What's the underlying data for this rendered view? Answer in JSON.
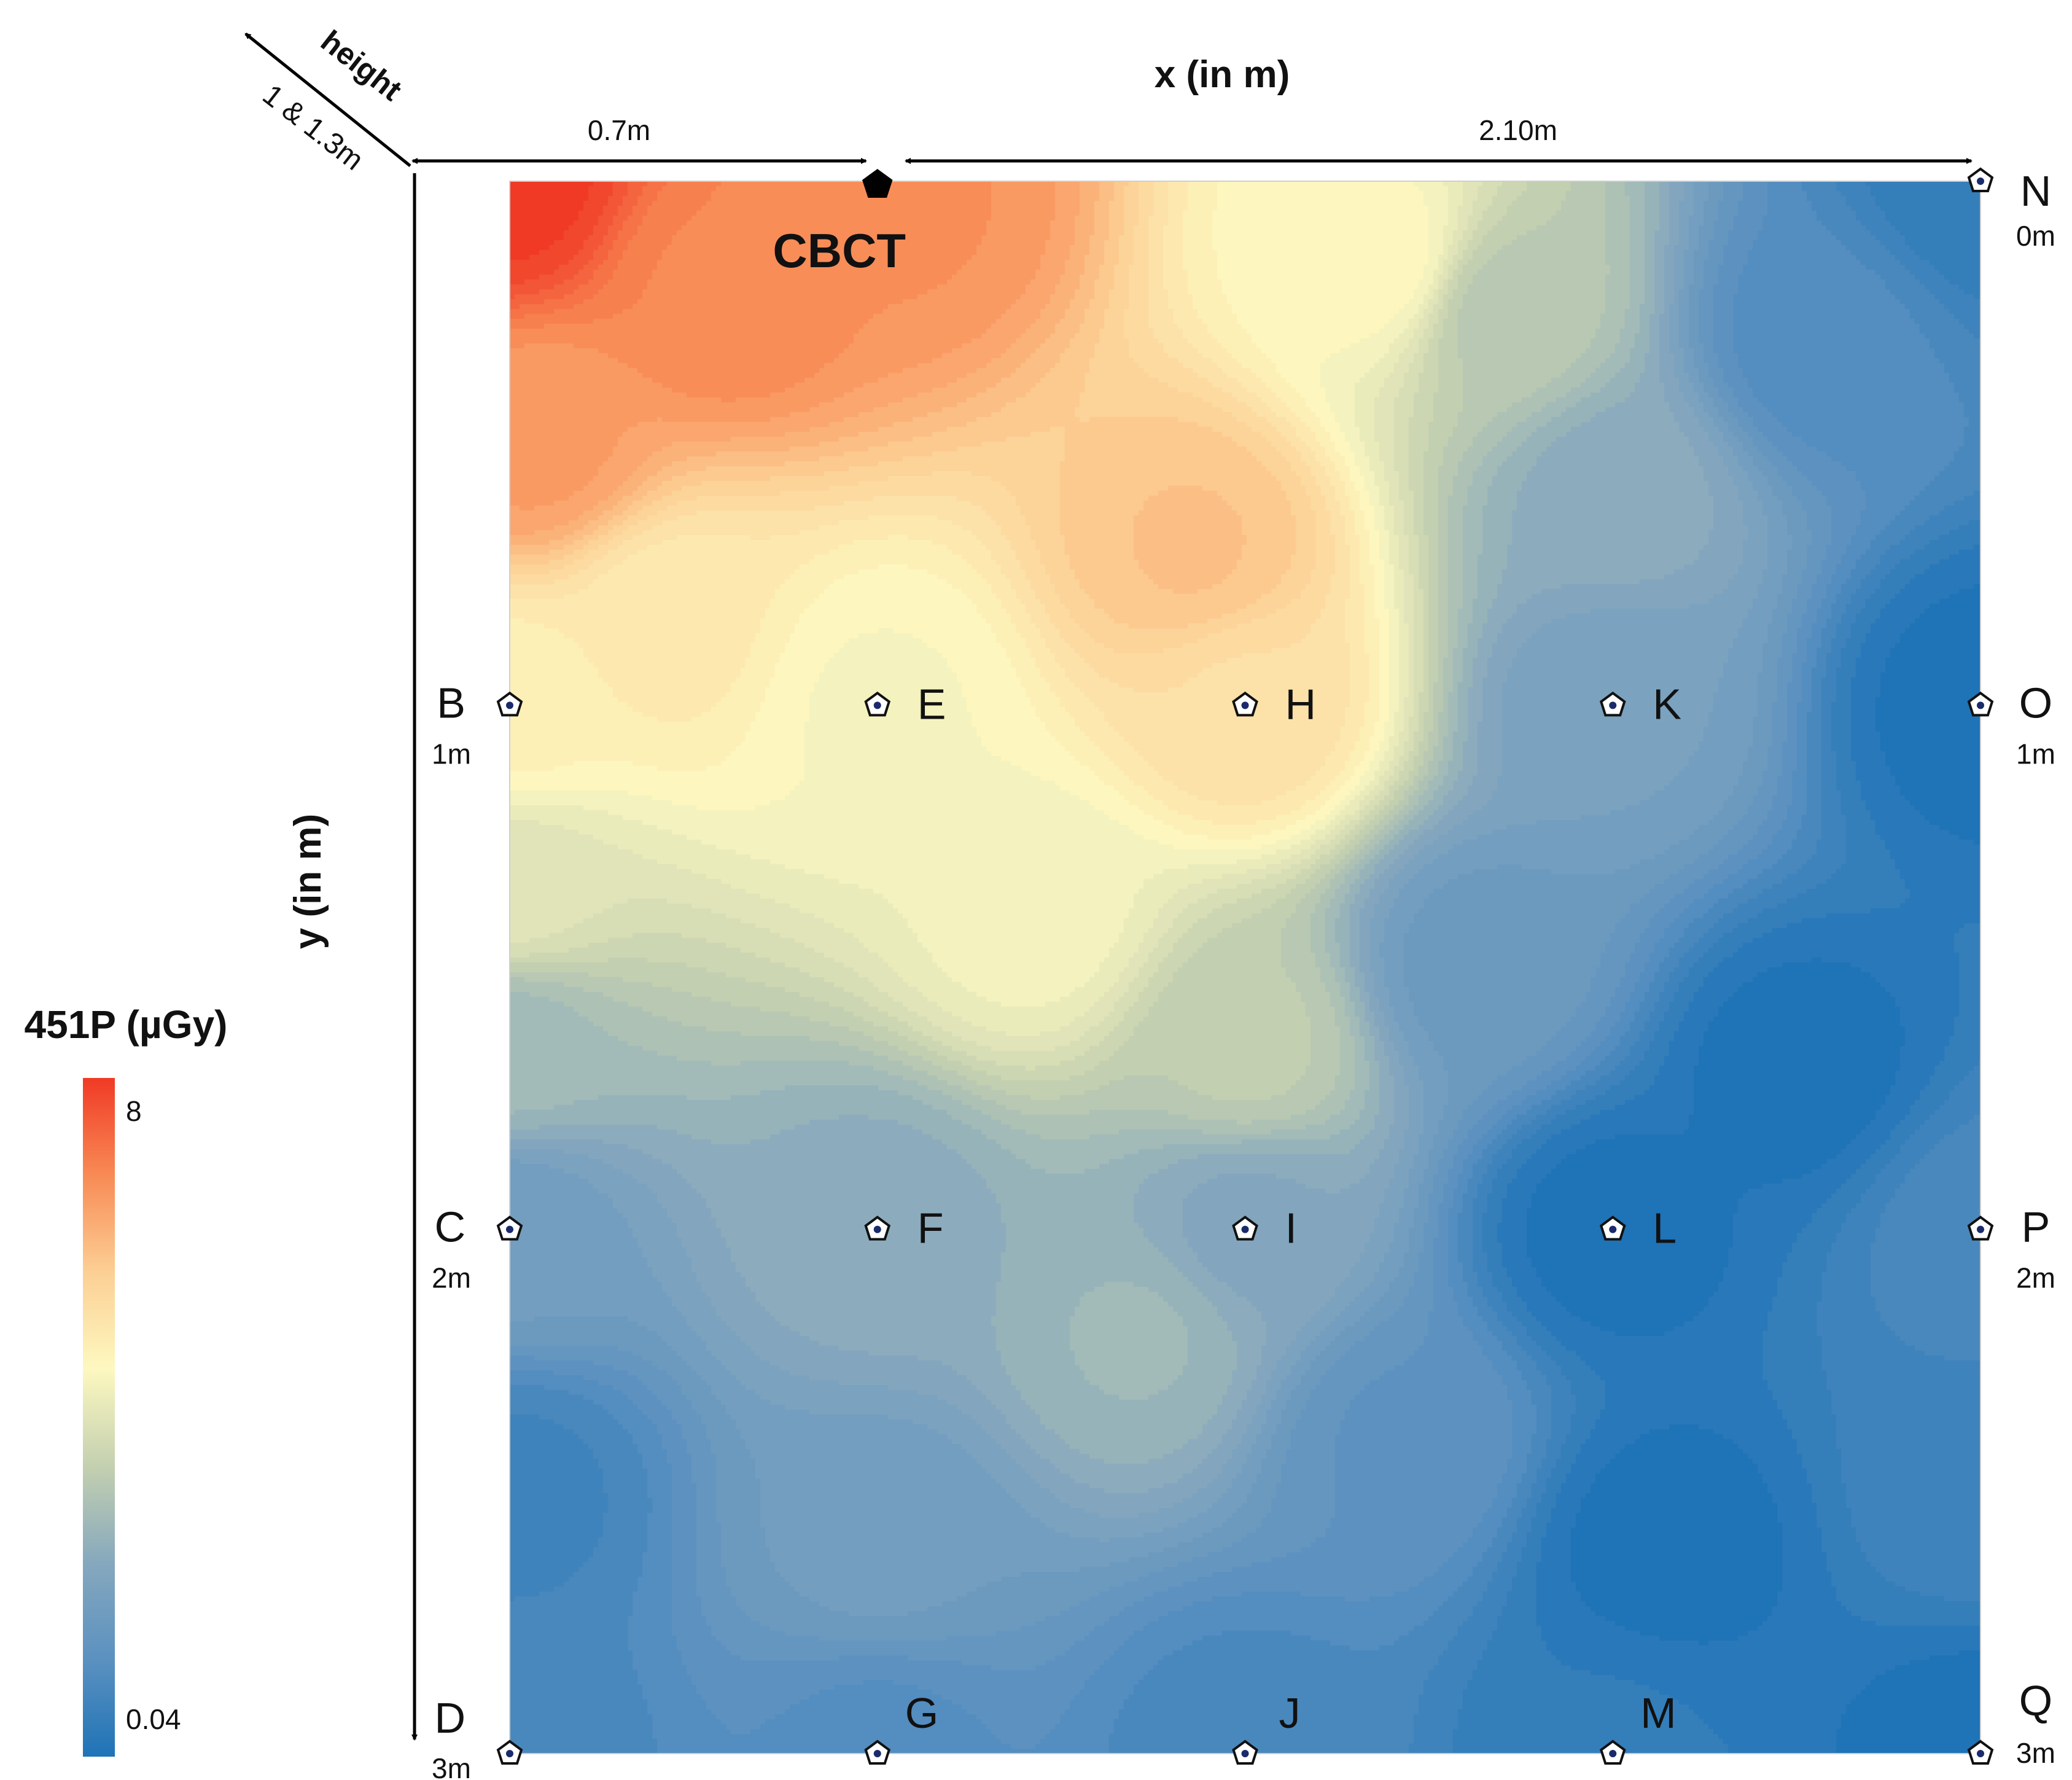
{
  "chart_data": {
    "type": "heatmap",
    "subtype": "dose contour map (floor plan)",
    "x_axis_title": "x (in m)",
    "y_axis_title": "y (in m)",
    "height_label": "height",
    "height_value": "1 & 1.3m",
    "dimension_labels": {
      "source_offset": "0.7m",
      "remaining_width": "2.10m"
    },
    "xlim": [
      0,
      2.8
    ],
    "ylim": [
      0,
      3
    ],
    "source": {
      "name": "CBCT",
      "x": 0.7,
      "y": 0
    },
    "colorbar": {
      "title": "451P (µGy)",
      "max_label": "8",
      "min_label": "0.04",
      "max_value": 8,
      "min_value": 0.04,
      "colors": [
        "#f03a25",
        "#f88a55",
        "#fccf94",
        "#fdf8c0",
        "#c4d0b0",
        "#86a8be",
        "#5b91c0",
        "#1f73b7"
      ]
    },
    "points": [
      {
        "name": "N",
        "x": 2.8,
        "y": 0,
        "distance_label": "0m"
      },
      {
        "name": "B",
        "x": 0,
        "y": 1,
        "distance_label": "1m"
      },
      {
        "name": "E",
        "x": 0.7,
        "y": 1,
        "distance_label": ""
      },
      {
        "name": "H",
        "x": 1.4,
        "y": 1,
        "distance_label": ""
      },
      {
        "name": "K",
        "x": 2.1,
        "y": 1,
        "distance_label": ""
      },
      {
        "name": "O",
        "x": 2.8,
        "y": 1,
        "distance_label": "1m"
      },
      {
        "name": "C",
        "x": 0,
        "y": 2,
        "distance_label": "2m"
      },
      {
        "name": "F",
        "x": 0.7,
        "y": 2,
        "distance_label": ""
      },
      {
        "name": "I",
        "x": 1.4,
        "y": 2,
        "distance_label": ""
      },
      {
        "name": "L",
        "x": 2.1,
        "y": 2,
        "distance_label": ""
      },
      {
        "name": "P",
        "x": 2.8,
        "y": 2,
        "distance_label": "2m"
      },
      {
        "name": "D",
        "x": 0,
        "y": 3,
        "distance_label": "3m"
      },
      {
        "name": "G",
        "x": 0.7,
        "y": 3,
        "distance_label": ""
      },
      {
        "name": "J",
        "x": 1.4,
        "y": 3,
        "distance_label": ""
      },
      {
        "name": "M",
        "x": 2.1,
        "y": 3,
        "distance_label": ""
      },
      {
        "name": "Q",
        "x": 2.8,
        "y": 3,
        "distance_label": "3m"
      }
    ],
    "field_levels": [
      {
        "x": 0.0,
        "y": 0.0,
        "level": 1.0
      },
      {
        "x": 0.4,
        "y": 0.2,
        "level": 0.86
      },
      {
        "x": 0.05,
        "y": 0.5,
        "level": 0.82
      },
      {
        "x": 0.75,
        "y": 0.05,
        "level": 0.84
      },
      {
        "x": 1.3,
        "y": 0.7,
        "level": 0.74
      },
      {
        "x": 1.4,
        "y": 1.0,
        "level": 0.66
      },
      {
        "x": 0.3,
        "y": 0.85,
        "level": 0.62
      },
      {
        "x": 0.7,
        "y": 1.0,
        "level": 0.56
      },
      {
        "x": 1.0,
        "y": 1.4,
        "level": 0.55
      },
      {
        "x": 1.65,
        "y": 0.15,
        "level": 0.58
      },
      {
        "x": 1.9,
        "y": 0.25,
        "level": 0.4
      },
      {
        "x": 2.1,
        "y": 0.6,
        "level": 0.3
      },
      {
        "x": 2.1,
        "y": 1.0,
        "level": 0.24
      },
      {
        "x": 2.5,
        "y": 0.3,
        "level": 0.12
      },
      {
        "x": 2.8,
        "y": 0.0,
        "level": 0.04
      },
      {
        "x": 2.8,
        "y": 1.0,
        "level": 0.0
      },
      {
        "x": 0.0,
        "y": 1.0,
        "level": 0.6
      },
      {
        "x": 0.0,
        "y": 1.35,
        "level": 0.5
      },
      {
        "x": 0.0,
        "y": 1.65,
        "level": 0.35
      },
      {
        "x": 0.0,
        "y": 2.0,
        "level": 0.22
      },
      {
        "x": 0.0,
        "y": 2.5,
        "level": 0.08
      },
      {
        "x": 0.0,
        "y": 3.0,
        "level": 0.1
      },
      {
        "x": 0.7,
        "y": 2.0,
        "level": 0.3
      },
      {
        "x": 1.2,
        "y": 2.2,
        "level": 0.34
      },
      {
        "x": 1.4,
        "y": 2.0,
        "level": 0.28
      },
      {
        "x": 1.4,
        "y": 1.65,
        "level": 0.42
      },
      {
        "x": 0.7,
        "y": 2.6,
        "level": 0.22
      },
      {
        "x": 0.7,
        "y": 3.0,
        "level": 0.13
      },
      {
        "x": 1.4,
        "y": 3.0,
        "level": 0.1
      },
      {
        "x": 1.7,
        "y": 2.4,
        "level": 0.16
      },
      {
        "x": 2.1,
        "y": 2.0,
        "level": 0.0
      },
      {
        "x": 2.2,
        "y": 2.6,
        "level": 0.0
      },
      {
        "x": 2.1,
        "y": 3.0,
        "level": 0.04
      },
      {
        "x": 2.45,
        "y": 1.7,
        "level": 0.0
      },
      {
        "x": 2.8,
        "y": 2.0,
        "level": 0.1
      },
      {
        "x": 2.8,
        "y": 2.5,
        "level": 0.08
      },
      {
        "x": 2.8,
        "y": 3.0,
        "level": 0.0
      },
      {
        "x": 1.85,
        "y": 1.5,
        "level": 0.2
      }
    ]
  }
}
